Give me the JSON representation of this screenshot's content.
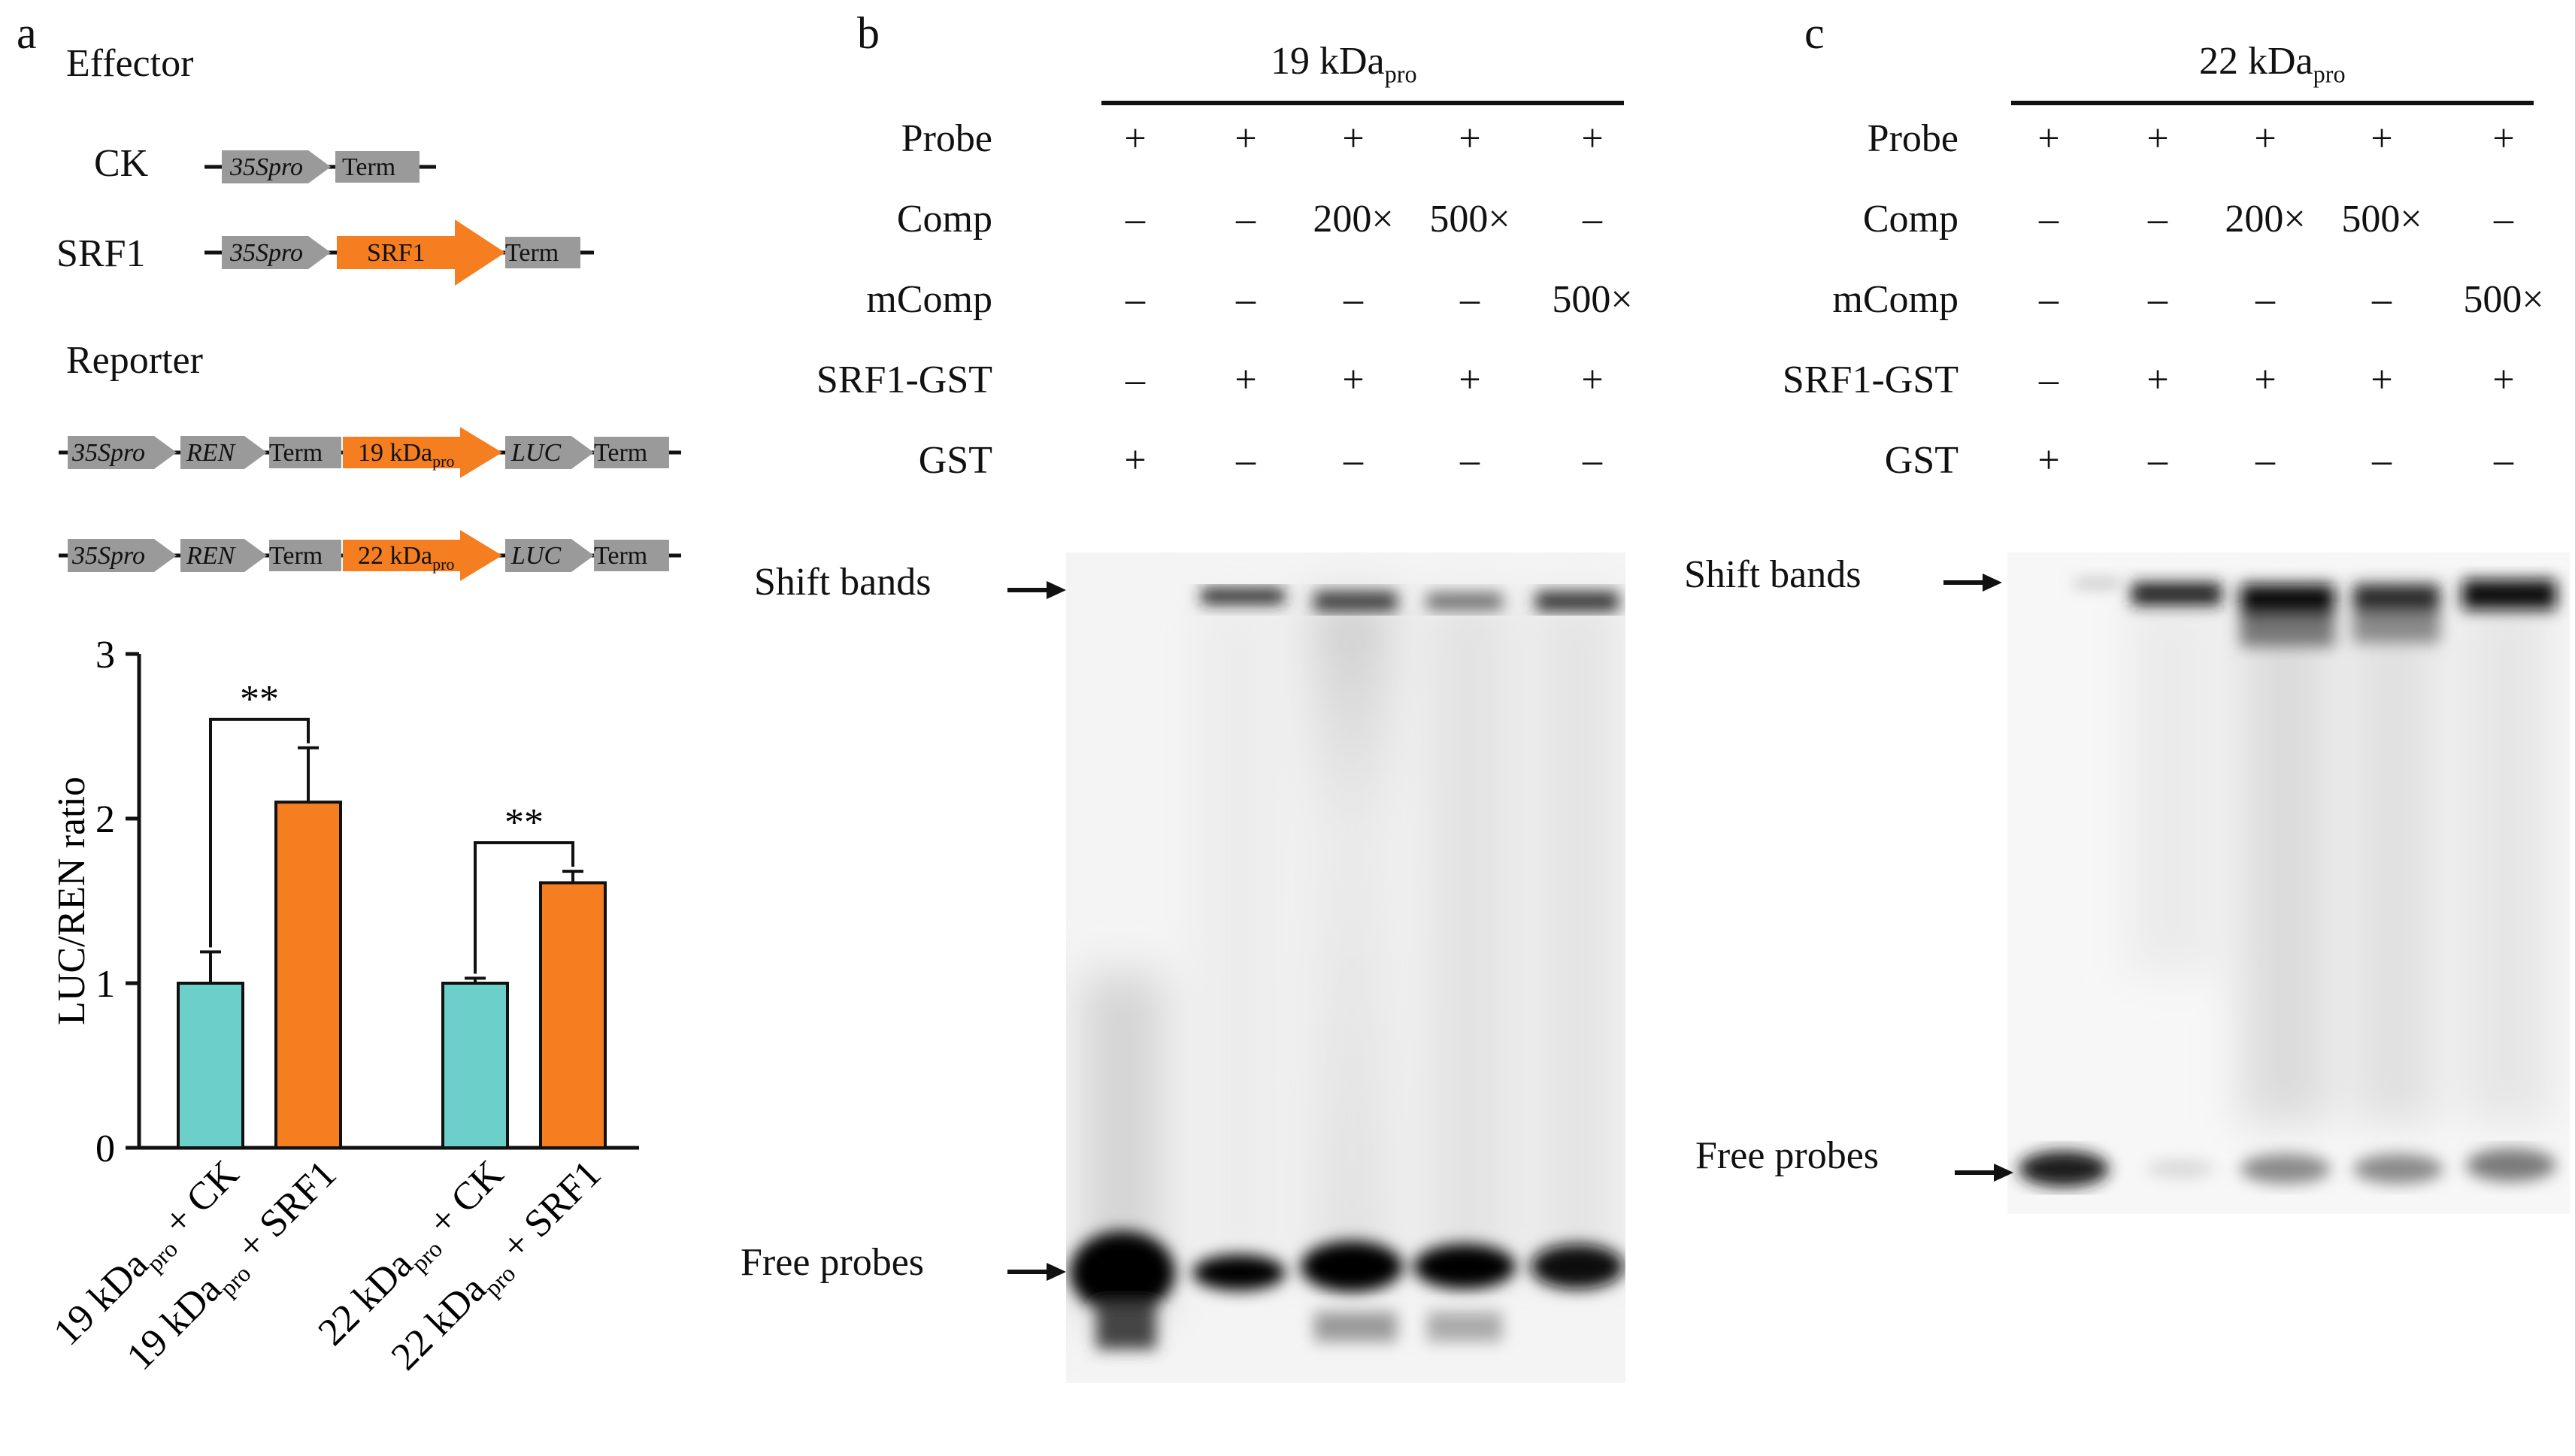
{
  "panel_a": {
    "letter": "a",
    "effector_title": "Effector",
    "reporter_title": "Reporter",
    "constructs": {
      "ck_label": "CK",
      "srf1_label": "SRF1",
      "promoter": "35Spro",
      "term": "Term",
      "srf1_gene": "SRF1",
      "ren": "REN",
      "luc": "LUC",
      "reporter1_prefix": "19 kDa",
      "reporter2_prefix": "22 kDa",
      "pro_sub": "pro"
    },
    "chart_data": {
      "type": "bar",
      "ylabel": "LUC/REN ratio",
      "ylim": [
        0,
        3
      ],
      "yticks": [
        "0",
        "1",
        "2",
        "3"
      ],
      "categories": [
        {
          "prefix": "19 kDa",
          "sub": "pro",
          "suffix": " + CK"
        },
        {
          "prefix": "19 kDa",
          "sub": "pro",
          "suffix": " + SRF1"
        },
        {
          "prefix": "22 kDa",
          "sub": "pro",
          "suffix": " + CK"
        },
        {
          "prefix": "22 kDa",
          "sub": "pro",
          "suffix": " + SRF1"
        }
      ],
      "values": [
        1.0,
        2.1,
        1.0,
        1.61
      ],
      "errors": [
        0.19,
        0.33,
        0.03,
        0.07
      ],
      "bar_colors": [
        "#6ccfca",
        "#f47e20",
        "#6ccfca",
        "#f47e20"
      ],
      "significance": [
        {
          "pair": [
            0,
            1
          ],
          "label": "**"
        },
        {
          "pair": [
            2,
            3
          ],
          "label": "**"
        }
      ]
    }
  },
  "panel_b": {
    "letter": "b",
    "header_prefix": "19 kDa",
    "header_sub": "pro",
    "shift_label": "Shift bands",
    "free_label": "Free probes",
    "rows": [
      {
        "label": "Probe",
        "cells": [
          "+",
          "+",
          "+",
          "+",
          "+"
        ]
      },
      {
        "label": "Comp",
        "cells": [
          "–",
          "–",
          "200×",
          "500×",
          "–"
        ]
      },
      {
        "label": "mComp",
        "cells": [
          "–",
          "–",
          "–",
          "–",
          "500×"
        ]
      },
      {
        "label": "SRF1-GST",
        "cells": [
          "–",
          "+",
          "+",
          "+",
          "+"
        ]
      },
      {
        "label": "GST",
        "cells": [
          "+",
          "–",
          "–",
          "–",
          "–"
        ]
      }
    ]
  },
  "panel_c": {
    "letter": "c",
    "header_prefix": "22 kDa",
    "header_sub": "pro",
    "shift_label": "Shift bands",
    "free_label": "Free probes",
    "rows": [
      {
        "label": "Probe",
        "cells": [
          "+",
          "+",
          "+",
          "+",
          "+"
        ]
      },
      {
        "label": "Comp",
        "cells": [
          "–",
          "–",
          "200×",
          "500×",
          "–"
        ]
      },
      {
        "label": "mComp",
        "cells": [
          "–",
          "–",
          "–",
          "–",
          "500×"
        ]
      },
      {
        "label": "SRF1-GST",
        "cells": [
          "–",
          "+",
          "+",
          "+",
          "+"
        ]
      },
      {
        "label": "GST",
        "cells": [
          "+",
          "–",
          "–",
          "–",
          "–"
        ]
      }
    ]
  },
  "colors": {
    "construct_gray": "#9a9a9a",
    "construct_orange": "#f47e20",
    "bar_teal": "#6ccfca",
    "bar_orange": "#f47e20"
  }
}
